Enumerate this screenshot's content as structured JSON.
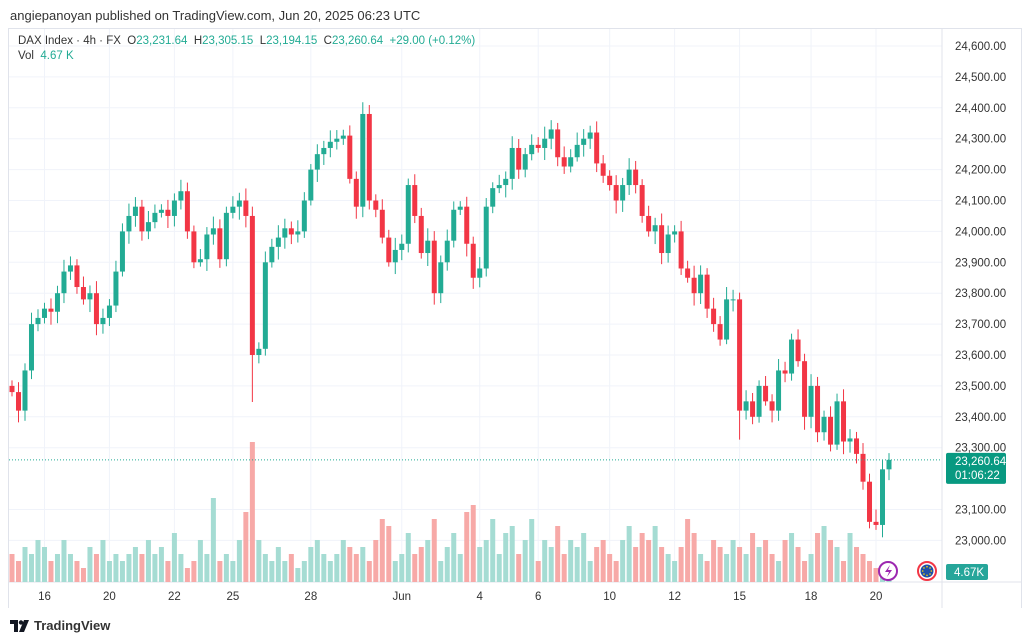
{
  "publisher": "angiepanoyan published on TradingView.com, Jun 20, 2025 06:23 UTC",
  "legend": {
    "symbol": "DAX Index · 4h · FX",
    "o_label": "O",
    "o": "23,231.64",
    "h_label": "H",
    "h": "23,305.15",
    "l_label": "L",
    "l": "23,194.15",
    "c_label": "C",
    "c": "23,260.64",
    "change": "+29.00 (+0.12%)",
    "vol_label": "Vol",
    "vol": "4.67 K"
  },
  "colors": {
    "up": "#22ab94",
    "down": "#f23645",
    "up_vol": "#a5dcd3",
    "down_vol": "#f7a9a7"
  },
  "price_tag": {
    "price": "23,260.64",
    "countdown": "01:06:22"
  },
  "volume_tag": "4.67K",
  "footer": "TradingView",
  "chart_data": {
    "type": "candlestick",
    "y_ticks": [
      "24,600.00",
      "24,500.00",
      "24,400.00",
      "24,300.00",
      "24,200.00",
      "24,100.00",
      "24,000.00",
      "23,900.00",
      "23,800.00",
      "23,700.00",
      "23,600.00",
      "23,500.00",
      "23,400.00",
      "23,300.00",
      "23,100.00",
      "23,000.00"
    ],
    "ylim": [
      22900,
      24600
    ],
    "x_ticks": [
      {
        "label": "16",
        "i": 5
      },
      {
        "label": "20",
        "i": 15
      },
      {
        "label": "22",
        "i": 25
      },
      {
        "label": "25",
        "i": 34
      },
      {
        "label": "28",
        "i": 46
      },
      {
        "label": "Jun",
        "i": 60
      },
      {
        "label": "4",
        "i": 72
      },
      {
        "label": "6",
        "i": 81
      },
      {
        "label": "10",
        "i": 92
      },
      {
        "label": "12",
        "i": 102
      },
      {
        "label": "15",
        "i": 112
      },
      {
        "label": "18",
        "i": 123
      },
      {
        "label": "20",
        "i": 133
      }
    ],
    "first_open": 23500,
    "close": [
      23480,
      23420,
      23550,
      23700,
      23720,
      23750,
      23740,
      23800,
      23870,
      23890,
      23820,
      23780,
      23800,
      23700,
      23720,
      23760,
      23870,
      24000,
      24050,
      24080,
      24000,
      24030,
      24060,
      24070,
      24050,
      24100,
      24130,
      24000,
      23900,
      23910,
      23990,
      24010,
      23910,
      24060,
      24080,
      24100,
      24050,
      23600,
      23620,
      23900,
      23950,
      23980,
      24010,
      23990,
      24000,
      24100,
      24200,
      24250,
      24270,
      24290,
      24300,
      24310,
      24170,
      24080,
      24380,
      24100,
      24070,
      23980,
      23900,
      23940,
      23960,
      24150,
      24050,
      23930,
      23970,
      23800,
      23900,
      23970,
      24070,
      24080,
      23960,
      23850,
      23880,
      24080,
      24140,
      24150,
      24170,
      24270,
      24200,
      24250,
      24280,
      24270,
      24300,
      24330,
      24240,
      24210,
      24240,
      24280,
      24300,
      24320,
      24220,
      24180,
      24150,
      24100,
      24150,
      24200,
      24150,
      24050,
      24000,
      24020,
      23930,
      23990,
      24000,
      23880,
      23850,
      23800,
      23860,
      23750,
      23700,
      23650,
      23780,
      23780,
      23420,
      23450,
      23400,
      23500,
      23450,
      23420,
      23550,
      23540,
      23650,
      23580,
      23400,
      23500,
      23350,
      23400,
      23310,
      23450,
      23320,
      23330,
      23280,
      23190,
      23060,
      23050,
      23230,
      23260.64
    ],
    "volume": [
      4,
      3,
      5,
      4,
      6,
      5,
      3,
      4,
      6,
      4,
      3,
      2,
      5,
      4,
      6,
      3,
      4,
      3,
      4,
      5,
      4,
      6,
      4,
      5,
      3,
      7,
      4,
      2,
      3,
      6,
      4,
      12,
      3,
      4,
      3,
      6,
      10,
      20,
      6,
      4,
      3,
      5,
      3,
      4,
      2,
      3,
      5,
      6,
      4,
      3,
      4,
      6,
      5,
      4,
      5,
      3,
      6,
      9,
      8,
      3,
      4,
      7,
      4,
      5,
      6,
      9,
      3,
      5,
      7,
      4,
      10,
      11,
      5,
      6,
      9,
      4,
      7,
      8,
      4,
      6,
      9,
      3,
      6,
      5,
      8,
      4,
      6,
      5,
      7,
      3,
      5,
      6,
      4,
      3,
      6,
      8,
      5,
      7,
      6,
      8,
      5,
      4,
      3,
      5,
      9,
      7,
      4,
      3,
      6,
      5,
      4,
      6,
      5,
      4,
      7,
      5,
      6,
      4,
      3,
      6,
      7,
      5,
      3,
      4,
      7,
      8,
      6,
      5,
      3,
      7,
      5,
      4,
      3,
      2,
      1,
      1
    ]
  }
}
